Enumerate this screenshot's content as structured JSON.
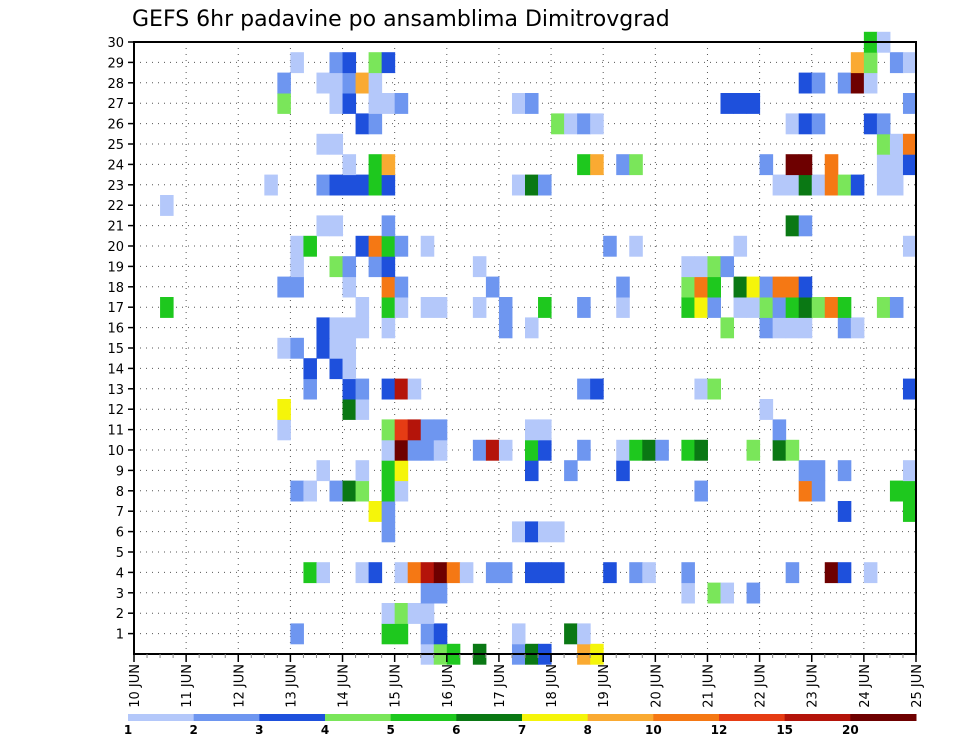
{
  "chart_data": {
    "type": "heatmap",
    "title": "GEFS 6hr padavine po ansamblima Dimitrovgrad",
    "xlabel": "",
    "ylabel": "",
    "x_ticks": [
      "10 JUN",
      "11 JUN",
      "12 JUN",
      "13 JUN",
      "14 JUN",
      "15 JUN",
      "16 JUN",
      "17 JUN",
      "18 JUN",
      "19 JUN",
      "20 JUN",
      "21 JUN",
      "22 JUN",
      "23 JUN",
      "24 JUN",
      "25 JUN"
    ],
    "y_ticks": [
      "1",
      "2",
      "3",
      "4",
      "5",
      "6",
      "7",
      "8",
      "9",
      "10",
      "11",
      "12",
      "13",
      "14",
      "15",
      "16",
      "17",
      "18",
      "19",
      "20",
      "21",
      "22",
      "23",
      "24",
      "25",
      "26",
      "27",
      "28",
      "29",
      "30"
    ],
    "xlim": [
      0,
      60
    ],
    "ylim": [
      0,
      30
    ],
    "grid": true,
    "legend": {
      "placement": "bottom",
      "levels": [
        "1",
        "2",
        "3",
        "4",
        "5",
        "6",
        "7",
        "8",
        "10",
        "12",
        "15",
        "20"
      ],
      "colors": [
        "#b4c8fa",
        "#6e96f0",
        "#1e50dc",
        "#7ae65a",
        "#1ec81e",
        "#0a7814",
        "#f5f50a",
        "#faaa32",
        "#f57814",
        "#e63c14",
        "#b4140a",
        "#6e0000"
      ]
    },
    "cells": [
      [
        22,
        0,
        1
      ],
      [
        23,
        0,
        4
      ],
      [
        24,
        0,
        5
      ],
      [
        26,
        0,
        6
      ],
      [
        29,
        0,
        2
      ],
      [
        30,
        0,
        6
      ],
      [
        31,
        0,
        3
      ],
      [
        34,
        0,
        8
      ],
      [
        35,
        0,
        7
      ],
      [
        12,
        1,
        2
      ],
      [
        19,
        1,
        5
      ],
      [
        20,
        1,
        5
      ],
      [
        22,
        1,
        2
      ],
      [
        23,
        1,
        3
      ],
      [
        29,
        1,
        1
      ],
      [
        33,
        1,
        6
      ],
      [
        34,
        1,
        1
      ],
      [
        19,
        2,
        1
      ],
      [
        20,
        2,
        4
      ],
      [
        21,
        2,
        1
      ],
      [
        22,
        2,
        1
      ],
      [
        22,
        3,
        2
      ],
      [
        23,
        3,
        2
      ],
      [
        42,
        3,
        1
      ],
      [
        44,
        3,
        4
      ],
      [
        45,
        3,
        1
      ],
      [
        47,
        3,
        2
      ],
      [
        13,
        4,
        5
      ],
      [
        14,
        4,
        1
      ],
      [
        17,
        4,
        1
      ],
      [
        18,
        4,
        3
      ],
      [
        20,
        4,
        1
      ],
      [
        21,
        4,
        9
      ],
      [
        22,
        4,
        11
      ],
      [
        23,
        4,
        12
      ],
      [
        24,
        4,
        9
      ],
      [
        25,
        4,
        1
      ],
      [
        27,
        4,
        2
      ],
      [
        28,
        4,
        2
      ],
      [
        30,
        4,
        3
      ],
      [
        31,
        4,
        3
      ],
      [
        32,
        4,
        3
      ],
      [
        36,
        4,
        3
      ],
      [
        38,
        4,
        2
      ],
      [
        39,
        4,
        1
      ],
      [
        42,
        4,
        2
      ],
      [
        50,
        4,
        2
      ],
      [
        53,
        4,
        12
      ],
      [
        54,
        4,
        3
      ],
      [
        56,
        4,
        1
      ],
      [
        29,
        6,
        1
      ],
      [
        30,
        6,
        3
      ],
      [
        31,
        6,
        1
      ],
      [
        32,
        6,
        1
      ],
      [
        19,
        6,
        2
      ],
      [
        18,
        7,
        7
      ],
      [
        19,
        7,
        2
      ],
      [
        54,
        7,
        3
      ],
      [
        59,
        7,
        5
      ],
      [
        12,
        8,
        2
      ],
      [
        13,
        8,
        1
      ],
      [
        15,
        8,
        2
      ],
      [
        16,
        8,
        6
      ],
      [
        17,
        8,
        4
      ],
      [
        19,
        8,
        5
      ],
      [
        20,
        8,
        1
      ],
      [
        43,
        8,
        2
      ],
      [
        51,
        8,
        9
      ],
      [
        52,
        8,
        2
      ],
      [
        58,
        8,
        5
      ],
      [
        59,
        8,
        5
      ],
      [
        14,
        9,
        1
      ],
      [
        17,
        9,
        1
      ],
      [
        19,
        9,
        5
      ],
      [
        20,
        9,
        7
      ],
      [
        30,
        9,
        3
      ],
      [
        33,
        9,
        2
      ],
      [
        37,
        9,
        3
      ],
      [
        51,
        9,
        2
      ],
      [
        52,
        9,
        2
      ],
      [
        54,
        9,
        2
      ],
      [
        59,
        9,
        1
      ],
      [
        19,
        10,
        1
      ],
      [
        20,
        10,
        12
      ],
      [
        21,
        10,
        2
      ],
      [
        22,
        10,
        2
      ],
      [
        23,
        10,
        1
      ],
      [
        26,
        10,
        2
      ],
      [
        27,
        10,
        11
      ],
      [
        28,
        10,
        1
      ],
      [
        30,
        10,
        5
      ],
      [
        31,
        10,
        3
      ],
      [
        34,
        10,
        2
      ],
      [
        37,
        10,
        1
      ],
      [
        38,
        10,
        5
      ],
      [
        39,
        10,
        6
      ],
      [
        40,
        10,
        2
      ],
      [
        42,
        10,
        5
      ],
      [
        43,
        10,
        6
      ],
      [
        47,
        10,
        4
      ],
      [
        49,
        10,
        6
      ],
      [
        50,
        10,
        4
      ],
      [
        11,
        11,
        1
      ],
      [
        19,
        11,
        4
      ],
      [
        20,
        11,
        10
      ],
      [
        21,
        11,
        11
      ],
      [
        22,
        11,
        2
      ],
      [
        23,
        11,
        2
      ],
      [
        30,
        11,
        1
      ],
      [
        31,
        11,
        1
      ],
      [
        49,
        11,
        2
      ],
      [
        11,
        12,
        7
      ],
      [
        16,
        12,
        6
      ],
      [
        17,
        12,
        1
      ],
      [
        48,
        12,
        1
      ],
      [
        13,
        13,
        2
      ],
      [
        16,
        13,
        3
      ],
      [
        17,
        13,
        2
      ],
      [
        19,
        13,
        3
      ],
      [
        20,
        13,
        11
      ],
      [
        21,
        13,
        1
      ],
      [
        34,
        13,
        2
      ],
      [
        35,
        13,
        3
      ],
      [
        43,
        13,
        1
      ],
      [
        44,
        13,
        4
      ],
      [
        59,
        13,
        3
      ],
      [
        13,
        14,
        3
      ],
      [
        15,
        14,
        3
      ],
      [
        16,
        14,
        1
      ],
      [
        11,
        15,
        1
      ],
      [
        12,
        15,
        2
      ],
      [
        14,
        15,
        3
      ],
      [
        15,
        15,
        1
      ],
      [
        16,
        15,
        1
      ],
      [
        14,
        16,
        3
      ],
      [
        15,
        16,
        1
      ],
      [
        16,
        16,
        1
      ],
      [
        17,
        16,
        1
      ],
      [
        19,
        16,
        1
      ],
      [
        28,
        16,
        2
      ],
      [
        30,
        16,
        1
      ],
      [
        45,
        16,
        4
      ],
      [
        48,
        16,
        2
      ],
      [
        49,
        16,
        1
      ],
      [
        50,
        16,
        1
      ],
      [
        51,
        16,
        1
      ],
      [
        54,
        16,
        2
      ],
      [
        55,
        16,
        1
      ],
      [
        2,
        17,
        5
      ],
      [
        17,
        17,
        1
      ],
      [
        19,
        17,
        5
      ],
      [
        20,
        17,
        1
      ],
      [
        22,
        17,
        1
      ],
      [
        23,
        17,
        1
      ],
      [
        26,
        17,
        1
      ],
      [
        28,
        17,
        2
      ],
      [
        31,
        17,
        5
      ],
      [
        34,
        17,
        2
      ],
      [
        37,
        17,
        1
      ],
      [
        42,
        17,
        5
      ],
      [
        43,
        17,
        7
      ],
      [
        44,
        17,
        2
      ],
      [
        46,
        17,
        1
      ],
      [
        47,
        17,
        1
      ],
      [
        48,
        17,
        4
      ],
      [
        49,
        17,
        2
      ],
      [
        50,
        17,
        5
      ],
      [
        51,
        17,
        6
      ],
      [
        52,
        17,
        4
      ],
      [
        53,
        17,
        9
      ],
      [
        54,
        17,
        5
      ],
      [
        57,
        17,
        4
      ],
      [
        58,
        17,
        2
      ],
      [
        11,
        18,
        2
      ],
      [
        12,
        18,
        2
      ],
      [
        16,
        18,
        1
      ],
      [
        19,
        18,
        9
      ],
      [
        20,
        18,
        2
      ],
      [
        27,
        18,
        2
      ],
      [
        37,
        18,
        2
      ],
      [
        42,
        18,
        4
      ],
      [
        43,
        18,
        9
      ],
      [
        44,
        18,
        5
      ],
      [
        46,
        18,
        6
      ],
      [
        47,
        18,
        7
      ],
      [
        48,
        18,
        2
      ],
      [
        49,
        18,
        9
      ],
      [
        50,
        18,
        9
      ],
      [
        51,
        18,
        3
      ],
      [
        12,
        19,
        1
      ],
      [
        15,
        19,
        4
      ],
      [
        16,
        19,
        2
      ],
      [
        18,
        19,
        2
      ],
      [
        19,
        19,
        3
      ],
      [
        26,
        19,
        1
      ],
      [
        42,
        19,
        1
      ],
      [
        43,
        19,
        1
      ],
      [
        44,
        19,
        4
      ],
      [
        45,
        19,
        2
      ],
      [
        12,
        20,
        1
      ],
      [
        13,
        20,
        5
      ],
      [
        17,
        20,
        3
      ],
      [
        18,
        20,
        9
      ],
      [
        19,
        20,
        5
      ],
      [
        20,
        20,
        2
      ],
      [
        22,
        20,
        1
      ],
      [
        36,
        20,
        2
      ],
      [
        38,
        20,
        1
      ],
      [
        46,
        20,
        1
      ],
      [
        59,
        20,
        1
      ],
      [
        14,
        21,
        1
      ],
      [
        15,
        21,
        1
      ],
      [
        19,
        21,
        2
      ],
      [
        50,
        21,
        6
      ],
      [
        51,
        21,
        2
      ],
      [
        2,
        22,
        1
      ],
      [
        10,
        23,
        1
      ],
      [
        14,
        23,
        2
      ],
      [
        15,
        23,
        3
      ],
      [
        16,
        23,
        3
      ],
      [
        17,
        23,
        3
      ],
      [
        18,
        23,
        5
      ],
      [
        19,
        23,
        3
      ],
      [
        29,
        23,
        1
      ],
      [
        30,
        23,
        6
      ],
      [
        31,
        23,
        2
      ],
      [
        49,
        23,
        1
      ],
      [
        50,
        23,
        1
      ],
      [
        51,
        23,
        6
      ],
      [
        52,
        23,
        1
      ],
      [
        53,
        23,
        9
      ],
      [
        54,
        23,
        4
      ],
      [
        55,
        23,
        3
      ],
      [
        57,
        23,
        1
      ],
      [
        58,
        23,
        1
      ],
      [
        16,
        24,
        1
      ],
      [
        18,
        24,
        5
      ],
      [
        19,
        24,
        8
      ],
      [
        34,
        24,
        5
      ],
      [
        35,
        24,
        8
      ],
      [
        37,
        24,
        2
      ],
      [
        38,
        24,
        4
      ],
      [
        48,
        24,
        2
      ],
      [
        50,
        24,
        12
      ],
      [
        51,
        24,
        12
      ],
      [
        53,
        24,
        9
      ],
      [
        57,
        24,
        1
      ],
      [
        58,
        24,
        1
      ],
      [
        59,
        24,
        3
      ],
      [
        14,
        25,
        1
      ],
      [
        15,
        25,
        1
      ],
      [
        57,
        25,
        4
      ],
      [
        58,
        25,
        1
      ],
      [
        59,
        25,
        9
      ],
      [
        17,
        26,
        3
      ],
      [
        18,
        26,
        2
      ],
      [
        32,
        26,
        4
      ],
      [
        33,
        26,
        1
      ],
      [
        34,
        26,
        2
      ],
      [
        35,
        26,
        1
      ],
      [
        50,
        26,
        1
      ],
      [
        51,
        26,
        3
      ],
      [
        52,
        26,
        2
      ],
      [
        56,
        26,
        3
      ],
      [
        57,
        26,
        2
      ],
      [
        11,
        27,
        4
      ],
      [
        15,
        27,
        1
      ],
      [
        16,
        27,
        3
      ],
      [
        18,
        27,
        1
      ],
      [
        19,
        27,
        1
      ],
      [
        20,
        27,
        2
      ],
      [
        29,
        27,
        1
      ],
      [
        30,
        27,
        2
      ],
      [
        45,
        27,
        3
      ],
      [
        46,
        27,
        3
      ],
      [
        47,
        27,
        3
      ],
      [
        59,
        27,
        2
      ],
      [
        11,
        28,
        2
      ],
      [
        14,
        28,
        1
      ],
      [
        15,
        28,
        1
      ],
      [
        16,
        28,
        2
      ],
      [
        17,
        28,
        8
      ],
      [
        18,
        28,
        1
      ],
      [
        51,
        28,
        3
      ],
      [
        52,
        28,
        2
      ],
      [
        54,
        28,
        2
      ],
      [
        55,
        28,
        12
      ],
      [
        56,
        28,
        1
      ],
      [
        12,
        29,
        1
      ],
      [
        15,
        29,
        2
      ],
      [
        16,
        29,
        3
      ],
      [
        18,
        29,
        4
      ],
      [
        19,
        29,
        3
      ],
      [
        55,
        29,
        8
      ],
      [
        56,
        29,
        4
      ],
      [
        58,
        29,
        2
      ],
      [
        59,
        29,
        1
      ],
      [
        56,
        30,
        5
      ],
      [
        57,
        30,
        1
      ]
    ]
  }
}
